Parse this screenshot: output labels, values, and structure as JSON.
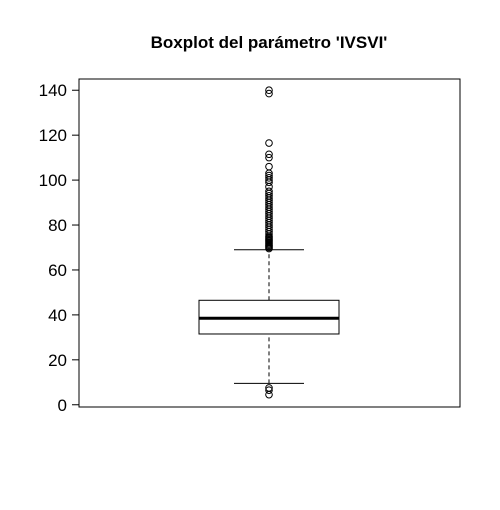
{
  "chart_data": {
    "type": "boxplot",
    "title": "Boxplot del parámetro 'IVSVI'",
    "xlabel": "",
    "ylabel": "",
    "ylim": [
      -1,
      145
    ],
    "y_ticks": [
      0,
      20,
      40,
      60,
      80,
      100,
      120,
      140
    ],
    "box": {
      "min_whisker": 9.5,
      "q1": 31.5,
      "median": 38.5,
      "q3": 46.5,
      "max_whisker": 69
    },
    "outliers_low": [
      4.5,
      6.5,
      7.5
    ],
    "outliers_high": [
      69.5,
      70,
      70.5,
      71,
      71.5,
      72,
      72.5,
      73,
      73.5,
      74,
      74.5,
      75,
      76,
      77,
      78,
      79,
      80,
      81,
      82,
      83,
      84,
      85,
      86,
      87,
      88,
      89,
      90,
      91,
      92,
      93,
      94,
      95,
      97,
      99,
      100,
      101,
      102,
      103,
      106,
      110,
      111.5,
      116.5,
      138.5,
      140
    ],
    "grid": false,
    "colors": {
      "box_fill": "#ffffff",
      "stroke": "#000000"
    }
  }
}
